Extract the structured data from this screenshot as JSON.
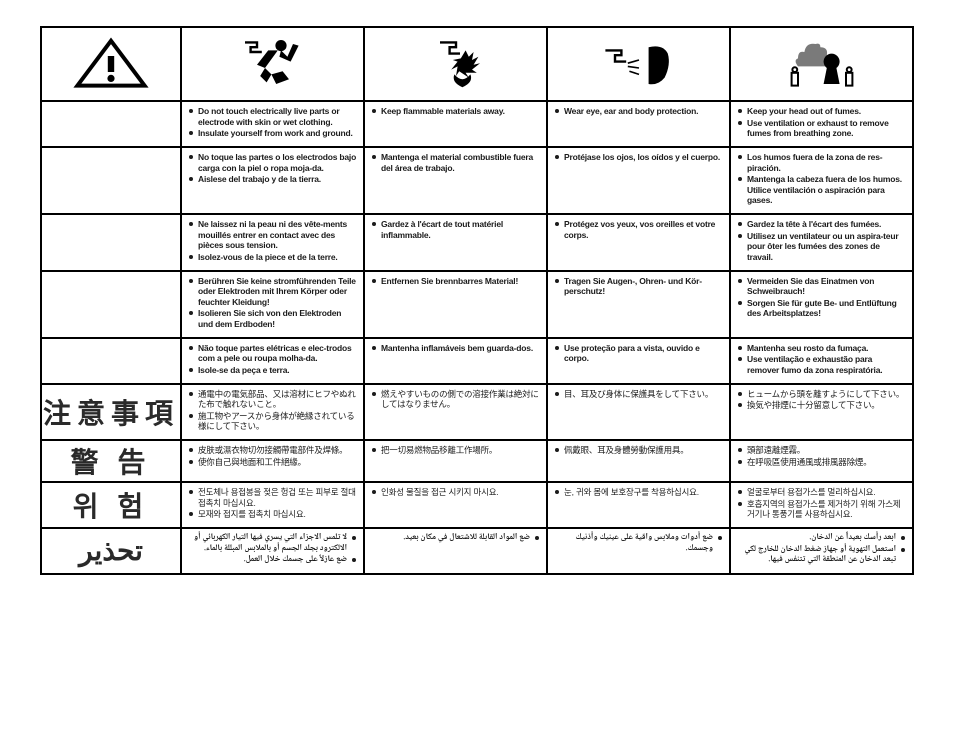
{
  "colors": {
    "border": "#000000",
    "text": "#1b1b1b",
    "label": "#2a2a2a",
    "bg": "#ffffff"
  },
  "icons": [
    "warning",
    "shock",
    "flammable",
    "eye-protection",
    "fumes"
  ],
  "labels": [
    "",
    "",
    "",
    "",
    "",
    "注意事項",
    "警  告",
    "위  험",
    "تحذير"
  ],
  "rows": [
    {
      "lang": "en",
      "cells": [
        [
          "Do not touch electrically live parts or electrode with skin or wet clothing.",
          "Insulate yourself from work and ground."
        ],
        [
          "Keep flammable materials away."
        ],
        [
          "Wear eye, ear and body protection."
        ],
        [
          "Keep your head out of fumes.",
          "Use ventilation or exhaust to remove fumes from breathing zone."
        ]
      ]
    },
    {
      "lang": "es",
      "cells": [
        [
          "No toque las partes o los electrodos bajo carga con la piel o ropa moja-da.",
          "Aislese del trabajo y de la tierra."
        ],
        [
          "Mantenga el material combustible fuera del área de trabajo."
        ],
        [
          "Protéjase los ojos, los oídos y el cuerpo."
        ],
        [
          "Los humos fuera de la zona de res-piración.",
          "Mantenga la cabeza fuera de los humos. Utilice ventilación o aspiración para gases."
        ]
      ]
    },
    {
      "lang": "fr",
      "cells": [
        [
          "Ne laissez ni la peau ni des vête-ments mouillés entrer en contact avec des pièces sous tension.",
          "Isolez-vous de la piece et de la terre."
        ],
        [
          "Gardez à l'écart de tout matériel inflammable."
        ],
        [
          "Protégez vos yeux, vos oreilles et votre corps."
        ],
        [
          "Gardez la tête à l'écart des fumées.",
          "Utilisez un ventilateur ou un aspira-teur pour ôter les fumées des zones de travail."
        ]
      ]
    },
    {
      "lang": "de",
      "cells": [
        [
          "Berühren Sie keine stromführenden Teile oder Elektroden mit Ihrem Körper oder feuchter Kleidung!",
          "Isolieren Sie sich von den Elektroden und dem Erdboden!"
        ],
        [
          "Entfernen Sie brennbarres Material!"
        ],
        [
          "Tragen Sie Augen-, Ohren- und Kör-perschutz!"
        ],
        [
          "Vermeiden Sie das Einatmen von Schweibrauch!",
          "Sorgen Sie für gute Be- und Entlüftung des Arbeitsplatzes!"
        ]
      ]
    },
    {
      "lang": "pt",
      "cells": [
        [
          "Não toque partes elétricas e elec-trodos com a pele ou roupa molha-da.",
          "Isole-se da peça e terra."
        ],
        [
          "Mantenha inflamáveis bem guarda-dos."
        ],
        [
          "Use proteção para a vista, ouvido e corpo."
        ],
        [
          "Mantenha seu rosto da fumaça.",
          "Use ventilação e exhaustão para remover fumo da zona respiratória."
        ]
      ]
    },
    {
      "lang": "ja",
      "cells": [
        [
          "通電中の電気部品、又は溶材にヒフやぬれた布で触れないこと。",
          "施工物やアースから身体が絶縁されている様にして下さい。"
        ],
        [
          "燃えやすいものの側での溶接作業は絶対にしてはなりません。"
        ],
        [
          "目、耳及び身体に保護具をして下さい。"
        ],
        [
          "ヒュームから頭を離すようにして下さい。",
          "換気や排煙に十分留意して下さい。"
        ]
      ]
    },
    {
      "lang": "zh",
      "cells": [
        [
          "皮肤或濕衣物切勿接觸帶電部件及焊條。",
          "使你自己與地面和工件絕緣。"
        ],
        [
          "把一切易燃物品移離工作場所。"
        ],
        [
          "佩戴眼、耳及身體勞動保護用具。"
        ],
        [
          "頭部遠離煙霧。",
          "在呼吸區使用通風或排風器除煙。"
        ]
      ]
    },
    {
      "lang": "ko",
      "cells": [
        [
          "전도체나  용접봉을  젖은  헝겁  또는 피부로 절대 접촉치 마십시요.",
          "모재와 접지를 접촉치 마십시요."
        ],
        [
          "인화성  물질을  접근 시키지 마시요."
        ],
        [
          "눈, 귀와  몸에  보호장구를 착용하십시요."
        ],
        [
          "얼굴로부터  용접가스를  멀리하십시요.",
          "호흡지역의  용접가스를  제거하기 위해  가스제거기나 통풍기를  사용하십시요."
        ]
      ]
    },
    {
      "lang": "ar",
      "cells": [
        [
          "لا تلمس الاجزاء التي يسري فيها التيار الكهربائي أو الالكترود بجلد الجسم أو بالملابس المبللة بالماء.",
          "ضع عازلاً على جسمك خلال العمل."
        ],
        [
          "ضع المواد القابلة للاشتعال في مكان بعيد."
        ],
        [
          "ضع أدوات وملابس واقية على عينيك وأذنيك وجسمك."
        ],
        [
          "ابعد رأسك بعيداً عن الدخان.",
          "استعمل التهوية أو جهاز ضغط الدخان للخارج لكي تبعد الدخان عن المنطقة التي تتنفس فيها."
        ]
      ]
    }
  ]
}
